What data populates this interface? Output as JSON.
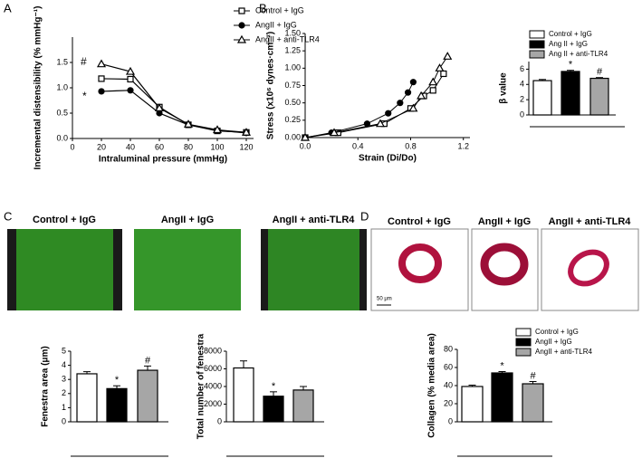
{
  "panel_labels": [
    "A",
    "B",
    "C",
    "D"
  ],
  "images": {
    "C": {
      "titles": [
        "Control + IgG",
        "AngII + IgG",
        "AngII + anti-TLR4"
      ]
    },
    "D": {
      "titles": [
        "Control + IgG",
        "AngII + IgG",
        "AngII + anti-TLR4"
      ],
      "scale_bar": "50 μm"
    }
  },
  "chart_data": [
    {
      "type": "line",
      "xlabel": "Intraluminal pressure (mmHg)",
      "ylabel": "Incremental distensibility (% mmHg⁻¹)",
      "xlim": [
        0,
        125
      ],
      "xticks": [
        0,
        20,
        40,
        60,
        80,
        100,
        120
      ],
      "ylim": [
        0,
        2
      ],
      "yticks": [
        {
          "value": 0,
          "label": "0.0"
        },
        {
          "value": 0.5,
          "label": "0.5"
        },
        {
          "value": 1,
          "label": "1.0"
        },
        {
          "value": 1.5,
          "label": "1.5"
        }
      ],
      "x": [
        20,
        40,
        60,
        80,
        100,
        120
      ],
      "series": [
        {
          "name": "Control + IgG",
          "color": "#000000",
          "marker": "square",
          "values": [
            1.18,
            1.17,
            0.62,
            0.27,
            0.15,
            0.12
          ]
        },
        {
          "name": "AngII + IgG",
          "color": "#000000",
          "marker": "circle",
          "values": [
            0.93,
            0.95,
            0.5,
            0.27,
            0.16,
            0.11
          ]
        },
        {
          "name": "AngII + anti-TLR4",
          "color": "#000000",
          "marker": "triangle",
          "values": [
            1.47,
            1.32,
            0.6,
            0.28,
            0.17,
            0.12
          ]
        }
      ],
      "annotations": [
        "#",
        "*"
      ]
    },
    {
      "type": "scatter",
      "xlabel": "Strain (Di/Do)",
      "ylabel": "Stress (x10⁶ dynes·cm⁻²)",
      "xlim": [
        0,
        1.25
      ],
      "xticks": [
        {
          "value": 0,
          "label": "0.0"
        },
        0.4,
        0.8,
        1.2
      ],
      "ylim": [
        0,
        1.5
      ],
      "yticks": [
        {
          "value": 0,
          "label": "0.00"
        },
        0.25,
        {
          "value": 0.5,
          "label": "0.50"
        },
        0.75,
        {
          "value": 1,
          "label": "1.00"
        },
        1.25,
        {
          "value": 1.5,
          "label": "1.50"
        }
      ],
      "series": [
        {
          "name": "Control + IgG",
          "color": "#000000",
          "marker": "square",
          "x": [
            0,
            0.25,
            0.6,
            0.8,
            0.9,
            0.97,
            1.05
          ],
          "values": [
            0,
            0.07,
            0.2,
            0.42,
            0.6,
            0.68,
            0.92
          ]
        },
        {
          "name": "AngII + IgG",
          "color": "#000000",
          "marker": "circle",
          "x": [
            0,
            0.2,
            0.47,
            0.63,
            0.72,
            0.78,
            0.82
          ],
          "values": [
            0,
            0.07,
            0.2,
            0.35,
            0.5,
            0.65,
            0.8
          ]
        },
        {
          "name": "AngII + anti-TLR4",
          "color": "#000000",
          "marker": "triangle",
          "x": [
            0,
            0.22,
            0.57,
            0.82,
            0.88,
            0.97,
            1.02,
            1.08
          ],
          "values": [
            0,
            0.07,
            0.2,
            0.42,
            0.6,
            0.8,
            1.0,
            1.17
          ]
        }
      ]
    },
    {
      "type": "bar",
      "ylabel": "β value",
      "ylim": [
        0,
        7
      ],
      "yticks": [
        0,
        2,
        4,
        6
      ],
      "legend": [
        "Control + IgG",
        "Ang II + IgG",
        "Ang II + anti-TLR4"
      ],
      "colors": [
        "#ffffff",
        "#000000",
        "#a6a6a6"
      ],
      "values": [
        4.5,
        5.7,
        4.8
      ],
      "errors": [
        0.15,
        0.15,
        0.1
      ],
      "markers": [
        null,
        "*",
        "#"
      ]
    },
    {
      "type": "bar",
      "ylabel": "Fenestra area (μm)",
      "ylim": [
        0,
        5
      ],
      "yticks": [
        0,
        1,
        2,
        3,
        4,
        5
      ],
      "colors": [
        "#ffffff",
        "#000000",
        "#a6a6a6"
      ],
      "values": [
        3.4,
        2.35,
        3.65
      ],
      "errors": [
        0.15,
        0.2,
        0.3
      ],
      "markers": [
        null,
        "*",
        "#"
      ]
    },
    {
      "type": "bar",
      "ylabel": "Total number of fenestra",
      "ylim": [
        0,
        8000
      ],
      "yticks": [
        0,
        2000,
        4000,
        6000,
        8000
      ],
      "colors": [
        "#ffffff",
        "#000000",
        "#a6a6a6"
      ],
      "values": [
        6100,
        2900,
        3600
      ],
      "errors": [
        800,
        500,
        400
      ],
      "markers": [
        null,
        "*",
        null
      ]
    },
    {
      "type": "bar",
      "ylabel": "Collagen (% media area)",
      "ylim": [
        0,
        80
      ],
      "yticks": [
        0,
        20,
        40,
        60,
        80
      ],
      "legend": [
        "Control + IgG",
        "AngII + IgG",
        "AngII + anti-TLR4"
      ],
      "colors": [
        "#ffffff",
        "#000000",
        "#a6a6a6"
      ],
      "values": [
        39,
        54,
        42
      ],
      "errors": [
        1.5,
        1.5,
        2.5
      ],
      "markers": [
        null,
        "*",
        "#"
      ]
    }
  ]
}
